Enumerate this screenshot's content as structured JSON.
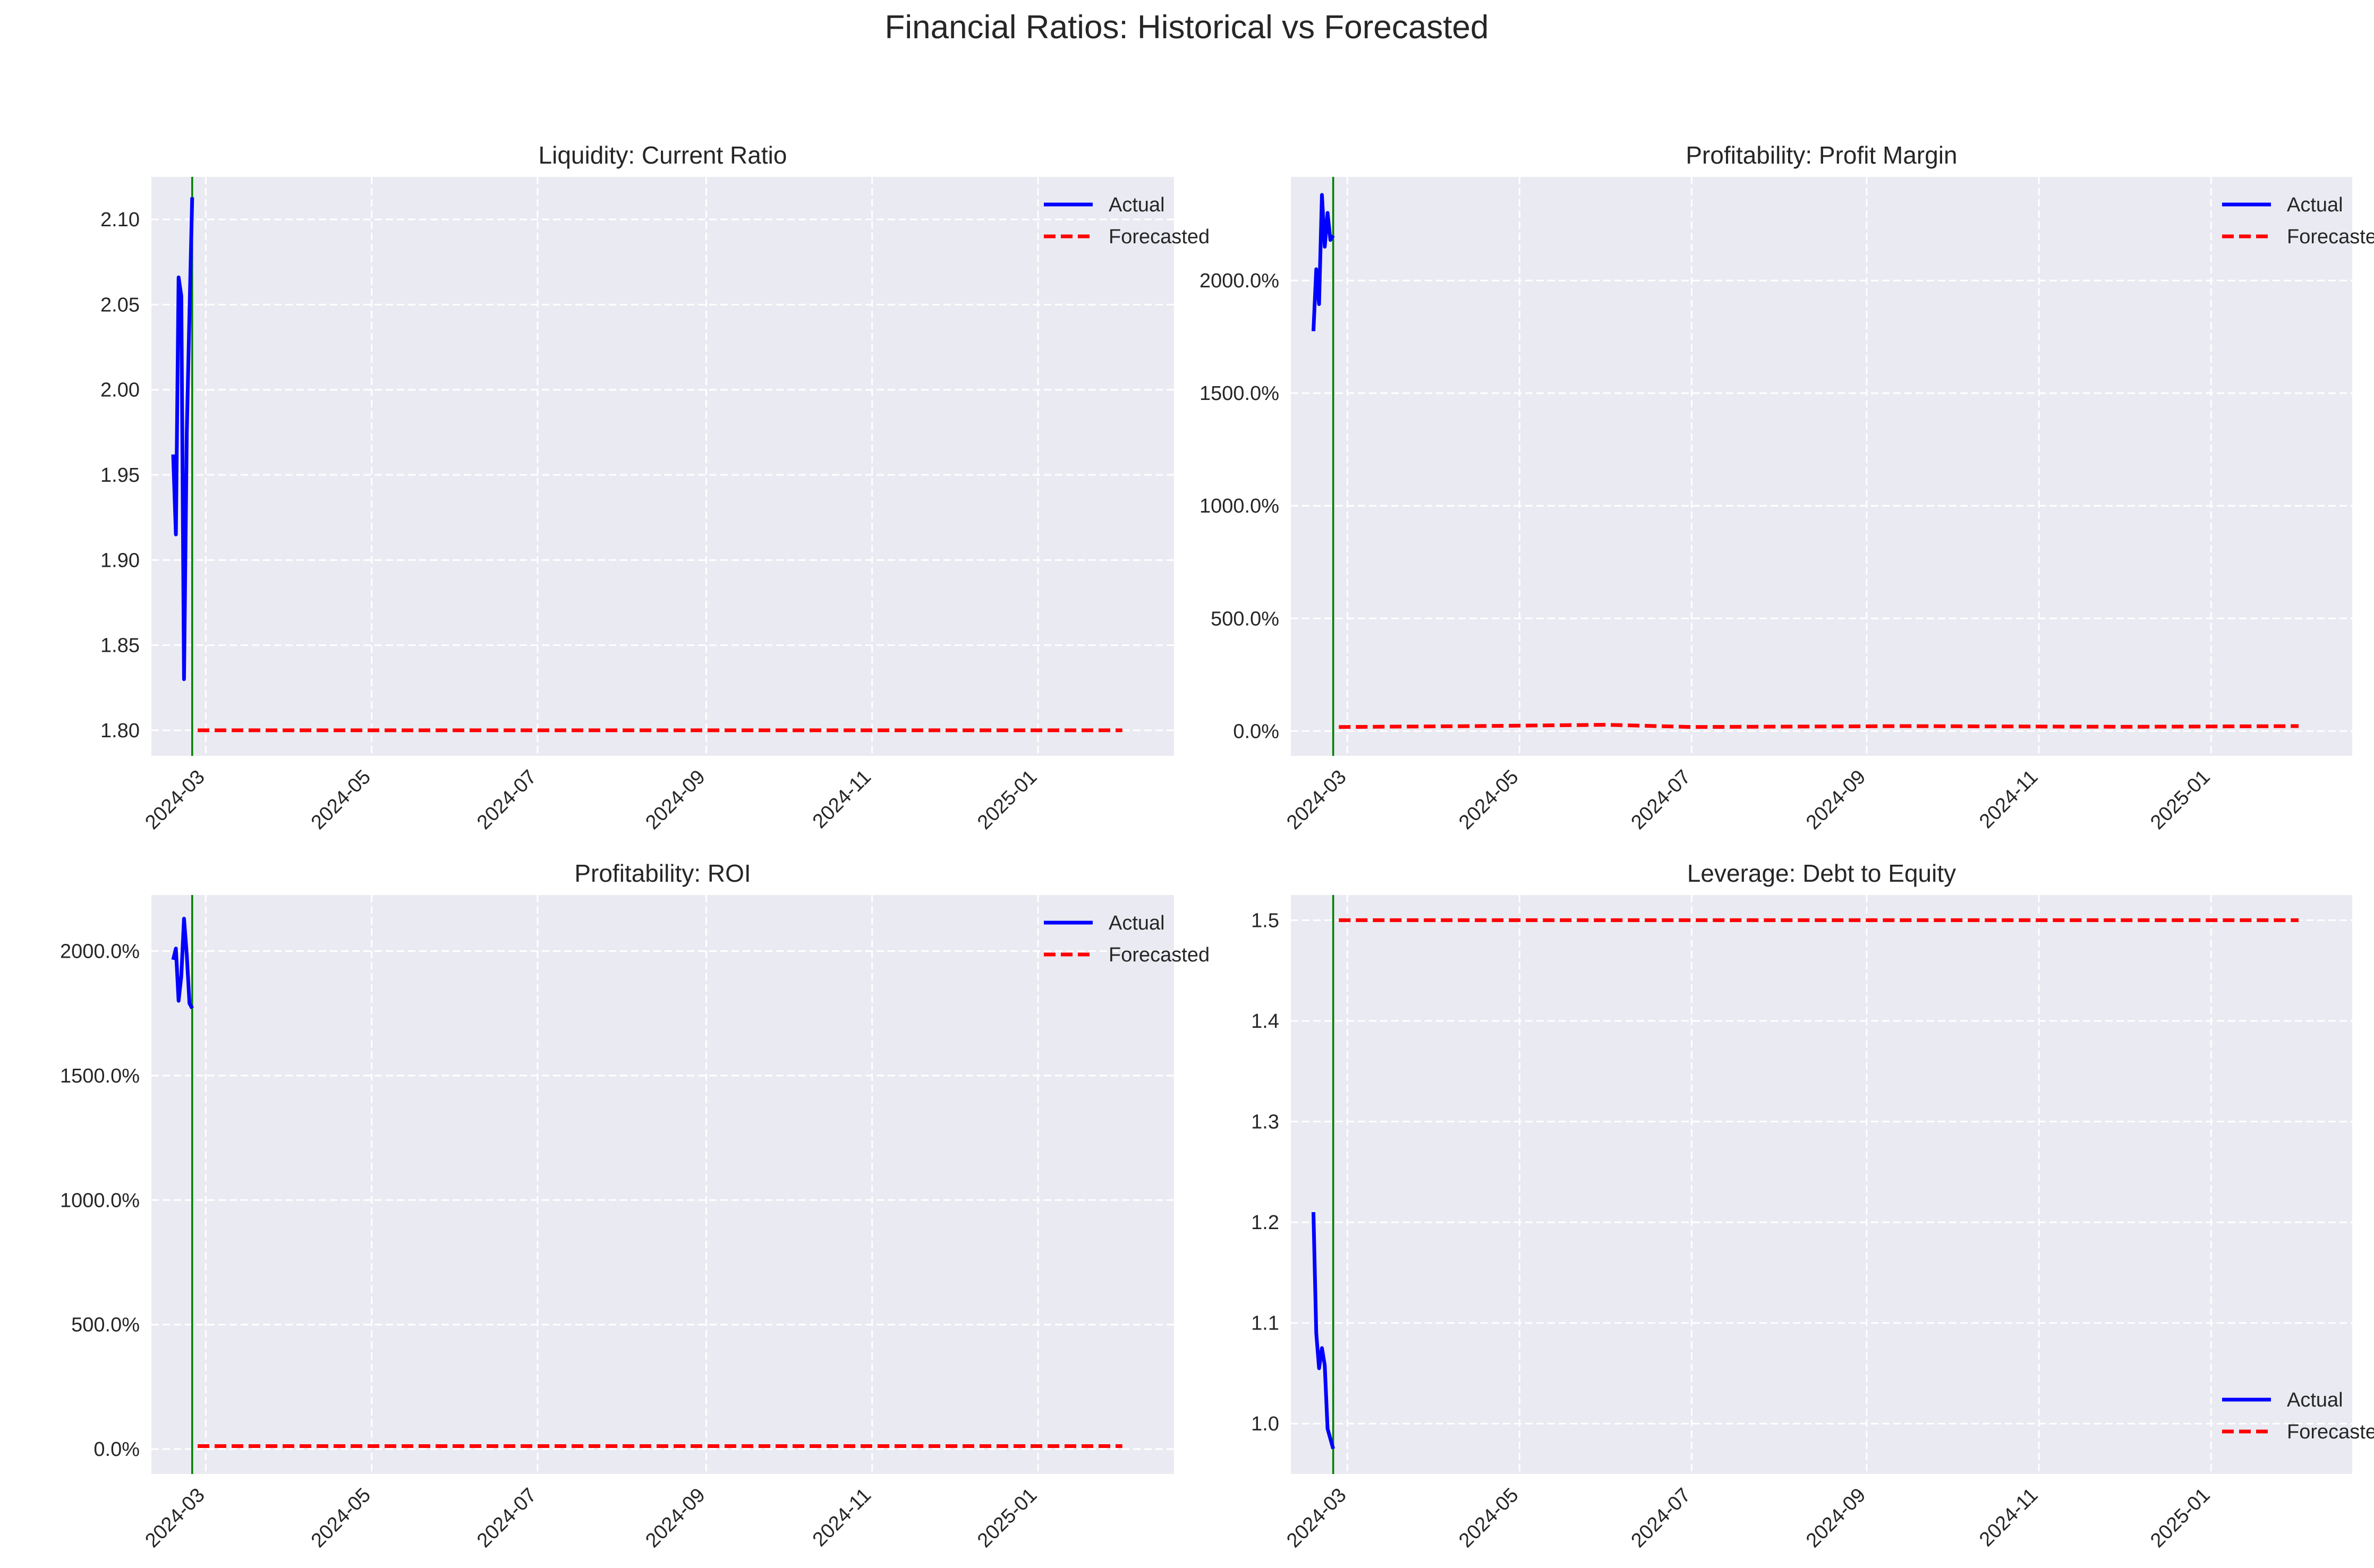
{
  "figure": {
    "title": "Financial Ratios: Historical vs Forecasted"
  },
  "colors": {
    "actual": "#0000ff",
    "forecast": "#ff0000",
    "split": "#008000",
    "panel_bg": "#eaeaf2",
    "grid": "#ffffff"
  },
  "chart_data": [
    {
      "type": "line",
      "title": "Liquidity: Current Ratio",
      "xlabel": "",
      "ylabel": "",
      "x_type": "date",
      "xlim": [
        "2024-02-10",
        "2025-02-20"
      ],
      "ylim": [
        1.785,
        2.125
      ],
      "y_ticks": [
        1.8,
        1.85,
        1.9,
        1.95,
        2.0,
        2.05,
        2.1
      ],
      "y_tick_labels": [
        "1.80",
        "1.85",
        "1.90",
        "1.95",
        "2.00",
        "2.05",
        "2.10"
      ],
      "x_ticks": [
        "2024-03-01",
        "2024-05-01",
        "2024-07-01",
        "2024-09-01",
        "2024-11-01",
        "2025-01-01"
      ],
      "x_tick_labels": [
        "2024-03",
        "2024-05",
        "2024-07",
        "2024-09",
        "2024-11",
        "2025-01"
      ],
      "split_date": "2024-02-25",
      "grid": true,
      "legend": "top-right",
      "series": [
        {
          "name": "Actual",
          "style": "solid",
          "x": [
            "2024-02-18",
            "2024-02-19",
            "2024-02-20",
            "2024-02-21",
            "2024-02-22",
            "2024-02-23",
            "2024-02-24",
            "2024-02-25"
          ],
          "y": [
            1.962,
            1.915,
            2.066,
            2.055,
            1.83,
            1.975,
            2.045,
            2.113
          ]
        },
        {
          "name": "Forecasted",
          "style": "dashed",
          "x": [
            "2024-02-27",
            "2025-02-01"
          ],
          "y": [
            1.8,
            1.8
          ]
        }
      ]
    },
    {
      "type": "line",
      "title": "Profitability: Profit Margin",
      "xlabel": "",
      "ylabel": "",
      "x_type": "date",
      "xlim": [
        "2024-02-10",
        "2025-02-20"
      ],
      "ylim": [
        -110,
        2460
      ],
      "y_ticks": [
        0,
        500,
        1000,
        1500,
        2000
      ],
      "y_tick_labels": [
        "0.0%",
        "500.0%",
        "1000.0%",
        "1500.0%",
        "2000.0%"
      ],
      "x_ticks": [
        "2024-03-01",
        "2024-05-01",
        "2024-07-01",
        "2024-09-01",
        "2024-11-01",
        "2025-01-01"
      ],
      "x_tick_labels": [
        "2024-03",
        "2024-05",
        "2024-07",
        "2024-09",
        "2024-11",
        "2025-01"
      ],
      "split_date": "2024-02-25",
      "grid": true,
      "legend": "top-right",
      "series": [
        {
          "name": "Actual",
          "style": "solid",
          "x": [
            "2024-02-18",
            "2024-02-19",
            "2024-02-20",
            "2024-02-21",
            "2024-02-22",
            "2024-02-23",
            "2024-02-24",
            "2024-02-25"
          ],
          "y": [
            1775,
            2050,
            1895,
            2380,
            2150,
            2300,
            2180,
            2200
          ]
        },
        {
          "name": "Forecasted",
          "style": "dashed",
          "x": [
            "2024-02-27",
            "2024-04-15",
            "2024-06-01",
            "2024-07-01",
            "2024-09-15",
            "2024-12-01",
            "2025-02-01"
          ],
          "y": [
            18,
            22,
            28,
            18,
            22,
            19,
            22
          ]
        }
      ]
    },
    {
      "type": "line",
      "title": "Profitability: ROI",
      "xlabel": "",
      "ylabel": "",
      "x_type": "date",
      "xlim": [
        "2024-02-10",
        "2025-02-20"
      ],
      "ylim": [
        -100,
        2225
      ],
      "y_ticks": [
        0,
        500,
        1000,
        1500,
        2000
      ],
      "y_tick_labels": [
        "0.0%",
        "500.0%",
        "1000.0%",
        "1500.0%",
        "2000.0%"
      ],
      "x_ticks": [
        "2024-03-01",
        "2024-05-01",
        "2024-07-01",
        "2024-09-01",
        "2024-11-01",
        "2025-01-01"
      ],
      "x_tick_labels": [
        "2024-03",
        "2024-05",
        "2024-07",
        "2024-09",
        "2024-11",
        "2025-01"
      ],
      "split_date": "2024-02-25",
      "grid": true,
      "legend": "top-right",
      "series": [
        {
          "name": "Actual",
          "style": "solid",
          "x": [
            "2024-02-18",
            "2024-02-19",
            "2024-02-20",
            "2024-02-21",
            "2024-02-22",
            "2024-02-23",
            "2024-02-24",
            "2024-02-25"
          ],
          "y": [
            1965,
            2010,
            1800,
            1900,
            2130,
            1985,
            1790,
            1770
          ]
        },
        {
          "name": "Forecasted",
          "style": "dashed",
          "x": [
            "2024-02-27",
            "2025-02-01"
          ],
          "y": [
            12,
            12
          ]
        }
      ]
    },
    {
      "type": "line",
      "title": "Leverage: Debt to Equity",
      "xlabel": "",
      "ylabel": "",
      "x_type": "date",
      "xlim": [
        "2024-02-10",
        "2025-02-20"
      ],
      "ylim": [
        0.95,
        1.525
      ],
      "y_ticks": [
        1.0,
        1.1,
        1.2,
        1.3,
        1.4,
        1.5
      ],
      "y_tick_labels": [
        "1.0",
        "1.1",
        "1.2",
        "1.3",
        "1.4",
        "1.5"
      ],
      "x_ticks": [
        "2024-03-01",
        "2024-05-01",
        "2024-07-01",
        "2024-09-01",
        "2024-11-01",
        "2025-01-01"
      ],
      "x_tick_labels": [
        "2024-03",
        "2024-05",
        "2024-07",
        "2024-09",
        "2024-11",
        "2025-01"
      ],
      "split_date": "2024-02-25",
      "grid": true,
      "legend": "bottom-right",
      "series": [
        {
          "name": "Actual",
          "style": "solid",
          "x": [
            "2024-02-18",
            "2024-02-19",
            "2024-02-20",
            "2024-02-21",
            "2024-02-22",
            "2024-02-23",
            "2024-02-24",
            "2024-02-25"
          ],
          "y": [
            1.21,
            1.09,
            1.055,
            1.075,
            1.058,
            0.995,
            0.985,
            0.975
          ]
        },
        {
          "name": "Forecasted",
          "style": "dashed",
          "x": [
            "2024-02-27",
            "2025-02-01"
          ],
          "y": [
            1.5,
            1.5
          ]
        }
      ]
    }
  ]
}
